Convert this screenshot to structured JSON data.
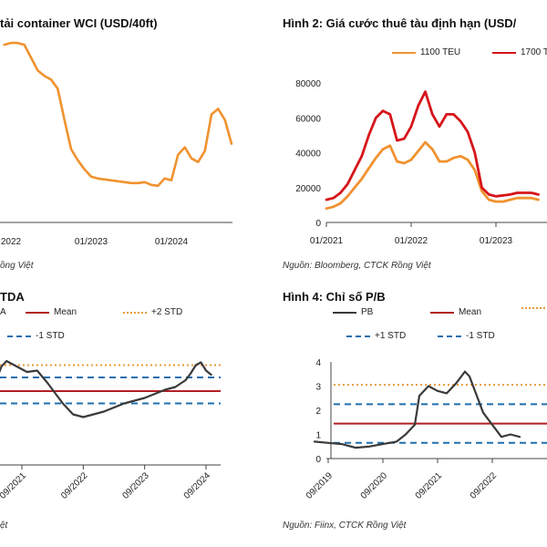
{
  "colors": {
    "orange": "#f0922f",
    "red": "#d6141a",
    "dark_red": "#b21f24",
    "dark_line": "#3a3a3a",
    "gold_dotted": "#e89a3c",
    "blue_dashed": "#1f6fae"
  },
  "fig1": {
    "title": "tải container WCI (USD/40ft)",
    "source": "ồng Việt"
  },
  "fig2": {
    "title": "Hình 2: Giá cước thuê tàu định hạn (USD/",
    "source": "Nguồn: Bloomberg, CTCK Rồng Việt",
    "legend": [
      "1100 TEU",
      "1700 T"
    ]
  },
  "fig3": {
    "title": "TDA",
    "source": "ệt",
    "legend": [
      "A",
      "Mean",
      "+2 STD",
      "-1 STD"
    ]
  },
  "fig4": {
    "title": "Hình 4: Chỉ số P/B",
    "source": "Nguồn: Fiinx, CTCK Rồng Việt",
    "legend": [
      "PB",
      "Mean",
      "+1 STD",
      "-1 STD"
    ]
  },
  "chart_data": [
    {
      "type": "line",
      "title": "tải container WCI (USD/40ft)",
      "x_ticks": [
        "2022",
        "01/2023",
        "01/2024"
      ],
      "series": [
        {
          "x": [
            "2021-12",
            "2022-01",
            "2022-02",
            "2022-03",
            "2022-04",
            "2022-05",
            "2022-06",
            "2022-07",
            "2022-08",
            "2022-09",
            "2022-10",
            "2022-11",
            "2022-12",
            "2023-01",
            "2023-02",
            "2023-03",
            "2023-04",
            "2023-05",
            "2023-06",
            "2023-07",
            "2023-08",
            "2023-09",
            "2023-10",
            "2023-11",
            "2023-12",
            "2024-01",
            "2024-02",
            "2024-03",
            "2024-04",
            "2024-05",
            "2024-06",
            "2024-07",
            "2024-08",
            "2024-09",
            "2024-10"
          ],
          "values": [
            9300,
            9400,
            9400,
            9300,
            8600,
            7900,
            7600,
            7400,
            6900,
            5200,
            3600,
            3000,
            2500,
            2100,
            2000,
            1950,
            1900,
            1850,
            1800,
            1750,
            1750,
            1800,
            1650,
            1600,
            2000,
            1900,
            3300,
            3700,
            3100,
            2900,
            3500,
            5500,
            5800,
            5200,
            3900
          ]
        }
      ]
    },
    {
      "type": "line",
      "title": "Hình 2: Giá cước thuê tàu định hạn (USD/",
      "y_ticks": [
        "0",
        "20000",
        "40000",
        "60000",
        "80000"
      ],
      "ylim": [
        0,
        80000
      ],
      "x_ticks": [
        "01/2021",
        "01/2022",
        "01/2023"
      ],
      "series": [
        {
          "name": "1100 TEU",
          "x": [
            "2021-01",
            "2021-02",
            "2021-03",
            "2021-04",
            "2021-05",
            "2021-06",
            "2021-07",
            "2021-08",
            "2021-09",
            "2021-10",
            "2021-11",
            "2021-12",
            "2022-01",
            "2022-02",
            "2022-03",
            "2022-04",
            "2022-05",
            "2022-06",
            "2022-07",
            "2022-08",
            "2022-09",
            "2022-10",
            "2022-11",
            "2022-12",
            "2023-01",
            "2023-02",
            "2023-03",
            "2023-04",
            "2023-05",
            "2023-06",
            "2023-07"
          ],
          "values": [
            8000,
            9000,
            11000,
            15000,
            20000,
            25000,
            31000,
            37000,
            42000,
            44000,
            35000,
            34000,
            36000,
            41000,
            46000,
            42000,
            35000,
            35000,
            37000,
            38000,
            36000,
            30000,
            18000,
            13000,
            12000,
            12000,
            13000,
            14000,
            14000,
            14000,
            13000
          ]
        },
        {
          "name": "1700 T",
          "x": [
            "2021-01",
            "2021-02",
            "2021-03",
            "2021-04",
            "2021-05",
            "2021-06",
            "2021-07",
            "2021-08",
            "2021-09",
            "2021-10",
            "2021-11",
            "2021-12",
            "2022-01",
            "2022-02",
            "2022-03",
            "2022-04",
            "2022-05",
            "2022-06",
            "2022-07",
            "2022-08",
            "2022-09",
            "2022-10",
            "2022-11",
            "2022-12",
            "2023-01",
            "2023-02",
            "2023-03",
            "2023-04",
            "2023-05",
            "2023-06",
            "2023-07"
          ],
          "values": [
            13000,
            14000,
            17000,
            22000,
            30000,
            38000,
            50000,
            60000,
            64000,
            62000,
            47000,
            48000,
            55000,
            67000,
            75000,
            62000,
            55000,
            62000,
            62000,
            58000,
            52000,
            40000,
            20000,
            16000,
            15000,
            15500,
            16000,
            17000,
            17000,
            17000,
            16000
          ]
        }
      ]
    },
    {
      "type": "line",
      "title": "TDA",
      "x_ticks": [
        "09/2021",
        "09/2022",
        "09/2023",
        "09/2024"
      ],
      "mean": 5.4,
      "plus2std": 7.3,
      "plus1std": 6.4,
      "minus1std": 4.5,
      "series": [
        {
          "x": [
            "2020-12",
            "2021-02",
            "2021-04",
            "2021-05",
            "2021-06",
            "2021-08",
            "2021-09",
            "2021-10",
            "2021-12",
            "2022-02",
            "2022-03",
            "2022-05",
            "2022-07",
            "2022-09",
            "2022-11",
            "2023-01",
            "2023-03",
            "2023-05",
            "2023-07",
            "2023-09",
            "2023-11",
            "2024-01",
            "2024-03",
            "2024-05",
            "2024-06",
            "2024-07",
            "2024-08",
            "2024-09",
            "2024-10"
          ],
          "values": [
            5.5,
            5.3,
            6.2,
            7.2,
            7.6,
            7.2,
            7.0,
            6.8,
            6.9,
            6.0,
            5.5,
            4.5,
            3.7,
            3.5,
            3.7,
            3.9,
            4.2,
            4.5,
            4.7,
            4.9,
            5.2,
            5.5,
            5.7,
            6.2,
            6.7,
            7.3,
            7.5,
            6.9,
            6.6
          ]
        }
      ]
    },
    {
      "type": "line",
      "title": "Hình 4: Chỉ số P/B",
      "y_ticks": [
        "0",
        "1",
        "2",
        "3",
        "4"
      ],
      "ylim": [
        0,
        4
      ],
      "x_ticks": [
        "09/2019",
        "09/2020",
        "09/2021",
        "09/2022"
      ],
      "mean": 1.45,
      "plus2std": 3.05,
      "plus1std": 2.25,
      "minus1std": 0.65,
      "series": [
        {
          "name": "PB",
          "x": [
            "2019-06",
            "2019-09",
            "2019-12",
            "2020-03",
            "2020-06",
            "2020-09",
            "2020-12",
            "2021-02",
            "2021-04",
            "2021-05",
            "2021-07",
            "2021-09",
            "2021-11",
            "2022-01",
            "2022-03",
            "2022-04",
            "2022-05",
            "2022-07",
            "2022-09",
            "2022-11",
            "2023-01",
            "2023-03"
          ],
          "values": [
            0.7,
            0.65,
            0.6,
            0.45,
            0.5,
            0.6,
            0.7,
            1.0,
            1.4,
            2.6,
            3.0,
            2.8,
            2.7,
            3.1,
            3.6,
            3.4,
            2.9,
            1.9,
            1.4,
            0.9,
            1.0,
            0.9
          ]
        }
      ]
    }
  ]
}
